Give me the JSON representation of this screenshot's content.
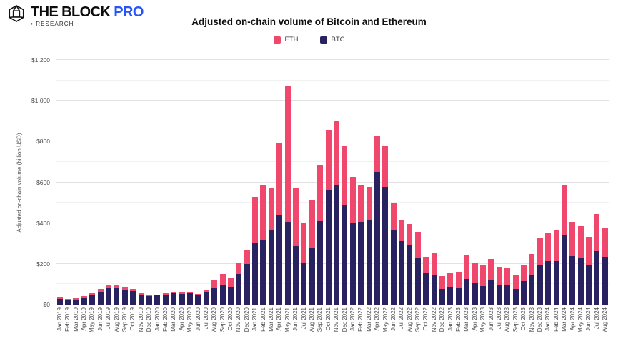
{
  "header": {
    "logo": {
      "brand": "THE BLOCK",
      "brand_accent": "PRO",
      "accent_color": "#2754F5",
      "research_label": "• RESEARCH"
    }
  },
  "chart_data": {
    "type": "bar",
    "stacked": true,
    "title": "Adjusted on-chain volume of Bitcoin and Ethereum",
    "xlabel": "",
    "ylabel": "Adjusted on-chain volume (billion USD)",
    "ylim": [
      0,
      1200
    ],
    "y_ticks": [
      "$0",
      "$200",
      "$400",
      "$600",
      "$800",
      "$1,000",
      "$1,200"
    ],
    "grid": "horizontal major every $200, minor every $100",
    "legend_position": "top-center",
    "legend": [
      {
        "name": "ETH",
        "color": "#F0476C"
      },
      {
        "name": "BTC",
        "color": "#282260"
      }
    ],
    "categories": [
      "Jan 2019",
      "Feb 2019",
      "Mar 2019",
      "Apr 2019",
      "May 2019",
      "Jun 2019",
      "Jul 2019",
      "Aug 2019",
      "Sep 2019",
      "Oct 2019",
      "Nov 2019",
      "Dec 2019",
      "Jan 2020",
      "Feb 2020",
      "Mar 2020",
      "Apr 2020",
      "May 2020",
      "Jun 2020",
      "Jul 2020",
      "Aug 2020",
      "Sep 2020",
      "Oct 2020",
      "Nov 2020",
      "Dec 2020",
      "Jan 2021",
      "Feb 2021",
      "Mar 2021",
      "Apr 2021",
      "May 2021",
      "Jun 2021",
      "Jul 2021",
      "Aug 2021",
      "Sep 2021",
      "Oct 2021",
      "Nov 2021",
      "Dec 2021",
      "Jan 2022",
      "Feb 2022",
      "Mar 2022",
      "Apr 2022",
      "May 2022",
      "Jun 2022",
      "Jul 2022",
      "Aug 2022",
      "Sep 2022",
      "Oct 2022",
      "Nov 2022",
      "Dec 2022",
      "Jan 2023",
      "Feb 2023",
      "Mar 2023",
      "Apr 2023",
      "May 2023",
      "Jun 2023",
      "Jul 2023",
      "Aug 2023",
      "Sep 2023",
      "Oct 2023",
      "Nov 2023",
      "Dec 2023",
      "Jan 2024",
      "Feb 2024",
      "Mar 2024",
      "Apr 2024",
      "May 2024",
      "Jun 2024",
      "Jul 2024",
      "Aug 2024"
    ],
    "series": [
      {
        "name": "ETH",
        "color": "#F0476C",
        "values": [
          7,
          6,
          7,
          8,
          10,
          12,
          13,
          14,
          12,
          10,
          7,
          6,
          6,
          7,
          8,
          8,
          7,
          6,
          14,
          42,
          53,
          45,
          55,
          70,
          228,
          272,
          209,
          349,
          663,
          284,
          194,
          236,
          276,
          293,
          311,
          288,
          221,
          179,
          166,
          178,
          200,
          128,
          100,
          99,
          128,
          74,
          112,
          62,
          73,
          76,
          114,
          93,
          99,
          99,
          86,
          87,
          66,
          75,
          101,
          130,
          139,
          153,
          242,
          170,
          160,
          139,
          180,
          142
        ]
      },
      {
        "name": "BTC",
        "color": "#282260",
        "values": [
          28,
          22,
          24,
          33,
          46,
          64,
          80,
          85,
          74,
          66,
          48,
          41,
          44,
          48,
          56,
          54,
          57,
          47,
          58,
          80,
          98,
          88,
          150,
          200,
          300,
          316,
          365,
          442,
          407,
          286,
          206,
          278,
          409,
          564,
          587,
          491,
          404,
          405,
          412,
          650,
          578,
          368,
          313,
          295,
          230,
          159,
          144,
          78,
          86,
          84,
          127,
          110,
          92,
          124,
          98,
          93,
          78,
          116,
          148,
          194,
          215,
          215,
          344,
          237,
          226,
          195,
          264,
          233
        ]
      }
    ]
  }
}
